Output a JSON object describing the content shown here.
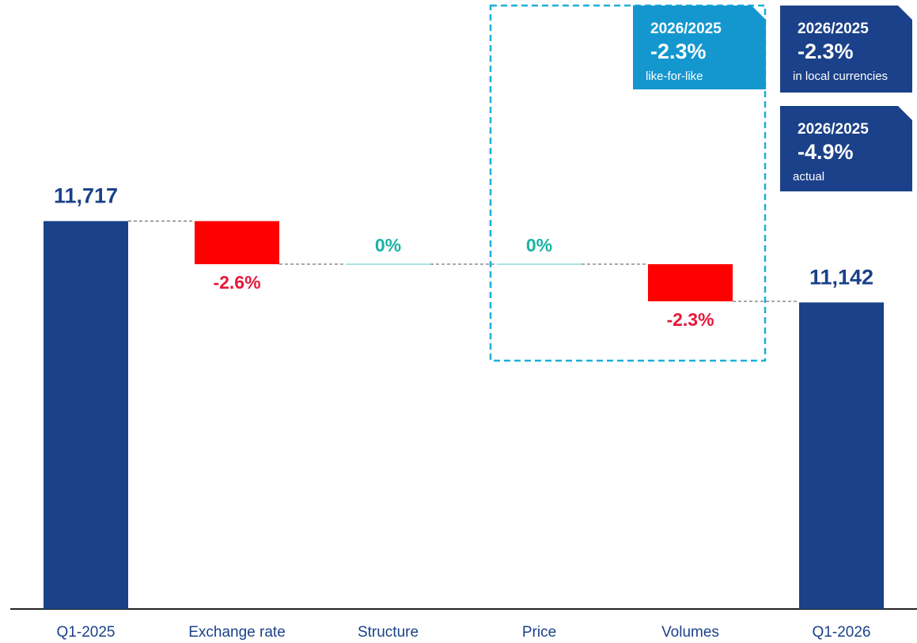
{
  "chart_data": {
    "type": "waterfall",
    "categories": [
      "Q1-2025",
      "Exchange rate",
      "Structure",
      "Price",
      "Volumes",
      "Q1-2026"
    ],
    "measures": [
      "absolute",
      "relative",
      "relative",
      "relative",
      "relative",
      "absolute"
    ],
    "values": [
      11717,
      -2.6,
      0,
      0,
      -2.3,
      11142
    ],
    "value_labels": [
      "11,717",
      "-2.6%",
      "0%",
      "0%",
      "-2.3%",
      "11,142"
    ],
    "ylim": [
      8975,
      13280
    ],
    "colors": {
      "total": "#1a4189",
      "decrease": "#ff0000",
      "zero": "#8fdcdc"
    },
    "label_colors": {
      "total": "#1a4189",
      "decrease": "#e8173a",
      "zero": "#1ab3a6"
    },
    "annotations": [
      {
        "heading": "2026/2025",
        "value": "-2.3%",
        "note": "like-for-like",
        "color": "#1497cf"
      },
      {
        "heading": "2026/2025",
        "value": "-2.3%",
        "note": "in local currencies",
        "color": "#1a4189"
      },
      {
        "heading": "2026/2025",
        "value": "-4.9%",
        "note": "actual",
        "color": "#1a4189"
      }
    ]
  }
}
